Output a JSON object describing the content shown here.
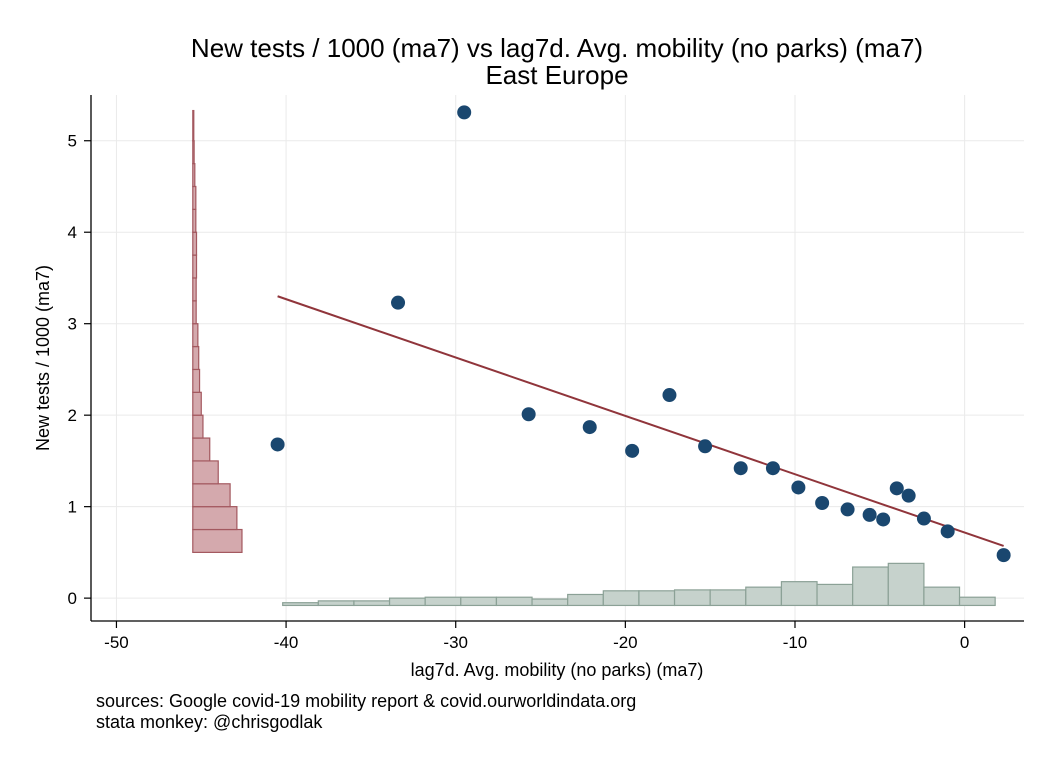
{
  "chart_data": {
    "type": "scatter",
    "title": "New tests / 1000 (ma7) vs lag7d. Avg. mobility (no parks) (ma7)",
    "subtitle": "East Europe",
    "xlabel": "lag7d. Avg. mobility (no parks) (ma7)",
    "ylabel": "New tests / 1000 (ma7)",
    "xlim": [
      -51.5,
      3.5
    ],
    "ylim": [
      -0.25,
      5.5
    ],
    "xticks": [
      -50,
      -40,
      -30,
      -20,
      -10,
      0
    ],
    "xtick_labels": [
      "-50",
      "-40",
      "-30",
      "-20",
      "-10",
      "0"
    ],
    "yticks": [
      0,
      1,
      2,
      3,
      4,
      5
    ],
    "ytick_labels": [
      "0",
      "1",
      "2",
      "3",
      "4",
      "5"
    ],
    "grid": true,
    "colors": {
      "points": "#1a476f",
      "fit_line": "#90353b",
      "y_hist_fill": "#d4a9ad",
      "y_hist_edge": "#a3585f",
      "x_hist_fill": "#c6d2cc",
      "x_hist_edge": "#8ba196",
      "grid": "#eaeaea"
    },
    "points": [
      {
        "x": -40.5,
        "y": 1.68
      },
      {
        "x": -33.4,
        "y": 3.23
      },
      {
        "x": -29.5,
        "y": 5.31
      },
      {
        "x": -25.7,
        "y": 2.01
      },
      {
        "x": -22.1,
        "y": 1.87
      },
      {
        "x": -19.6,
        "y": 1.61
      },
      {
        "x": -17.4,
        "y": 2.22
      },
      {
        "x": -15.3,
        "y": 1.66
      },
      {
        "x": -13.2,
        "y": 1.42
      },
      {
        "x": -11.3,
        "y": 1.42
      },
      {
        "x": -9.8,
        "y": 1.21
      },
      {
        "x": -8.4,
        "y": 1.04
      },
      {
        "x": -6.9,
        "y": 0.97
      },
      {
        "x": -5.6,
        "y": 0.91
      },
      {
        "x": -4.8,
        "y": 0.86
      },
      {
        "x": -4.0,
        "y": 1.2
      },
      {
        "x": -3.3,
        "y": 1.12
      },
      {
        "x": -2.4,
        "y": 0.87
      },
      {
        "x": -1.0,
        "y": 0.73
      },
      {
        "x": 2.3,
        "y": 0.47
      }
    ],
    "fit_line": {
      "x": [
        -40.5,
        2.3
      ],
      "y": [
        3.3,
        0.57
      ]
    },
    "y_histogram": {
      "base_x": -45.5,
      "bins": [
        {
          "y0": 0.5,
          "y1": 0.75,
          "width": 2.9
        },
        {
          "y0": 0.75,
          "y1": 1.0,
          "width": 2.6
        },
        {
          "y0": 1.0,
          "y1": 1.25,
          "width": 2.2
        },
        {
          "y0": 1.25,
          "y1": 1.5,
          "width": 1.5
        },
        {
          "y0": 1.5,
          "y1": 1.75,
          "width": 1.0
        },
        {
          "y0": 1.75,
          "y1": 2.0,
          "width": 0.6
        },
        {
          "y0": 2.0,
          "y1": 2.25,
          "width": 0.5
        },
        {
          "y0": 2.25,
          "y1": 2.5,
          "width": 0.4
        },
        {
          "y0": 2.5,
          "y1": 2.75,
          "width": 0.35
        },
        {
          "y0": 2.75,
          "y1": 3.0,
          "width": 0.3
        },
        {
          "y0": 3.0,
          "y1": 3.25,
          "width": 0.2
        },
        {
          "y0": 3.25,
          "y1": 3.5,
          "width": 0.2
        },
        {
          "y0": 3.5,
          "y1": 3.75,
          "width": 0.22
        },
        {
          "y0": 3.75,
          "y1": 4.0,
          "width": 0.22
        },
        {
          "y0": 4.0,
          "y1": 4.25,
          "width": 0.18
        },
        {
          "y0": 4.25,
          "y1": 4.5,
          "width": 0.18
        },
        {
          "y0": 4.5,
          "y1": 4.75,
          "width": 0.12
        },
        {
          "y0": 4.75,
          "y1": 5.0,
          "width": 0.08
        },
        {
          "y0": 5.0,
          "y1": 5.33,
          "width": 0.06
        }
      ]
    },
    "x_histogram": {
      "base_y": -0.08,
      "bins": [
        {
          "x0": -40.2,
          "x1": -38.1,
          "height": 0.03
        },
        {
          "x0": -38.1,
          "x1": -36.0,
          "height": 0.05
        },
        {
          "x0": -36.0,
          "x1": -33.9,
          "height": 0.05
        },
        {
          "x0": -33.9,
          "x1": -31.8,
          "height": 0.08
        },
        {
          "x0": -31.8,
          "x1": -29.7,
          "height": 0.09
        },
        {
          "x0": -29.7,
          "x1": -27.6,
          "height": 0.09
        },
        {
          "x0": -27.6,
          "x1": -25.5,
          "height": 0.09
        },
        {
          "x0": -25.5,
          "x1": -23.4,
          "height": 0.07
        },
        {
          "x0": -23.4,
          "x1": -21.3,
          "height": 0.12
        },
        {
          "x0": -21.3,
          "x1": -19.2,
          "height": 0.16
        },
        {
          "x0": -19.2,
          "x1": -17.1,
          "height": 0.16
        },
        {
          "x0": -17.1,
          "x1": -15.0,
          "height": 0.17
        },
        {
          "x0": -15.0,
          "x1": -12.9,
          "height": 0.17
        },
        {
          "x0": -12.9,
          "x1": -10.8,
          "height": 0.2
        },
        {
          "x0": -10.8,
          "x1": -8.7,
          "height": 0.26
        },
        {
          "x0": -8.7,
          "x1": -6.6,
          "height": 0.23
        },
        {
          "x0": -6.6,
          "x1": -4.5,
          "height": 0.42
        },
        {
          "x0": -4.5,
          "x1": -2.4,
          "height": 0.46
        },
        {
          "x0": -2.4,
          "x1": -0.3,
          "height": 0.2
        },
        {
          "x0": -0.3,
          "x1": 1.8,
          "height": 0.09
        }
      ]
    }
  },
  "notes": [
    "sources: Google covid-19 mobility report & covid.ourworldindata.org",
    "stata monkey: @chrisgodlak"
  ]
}
